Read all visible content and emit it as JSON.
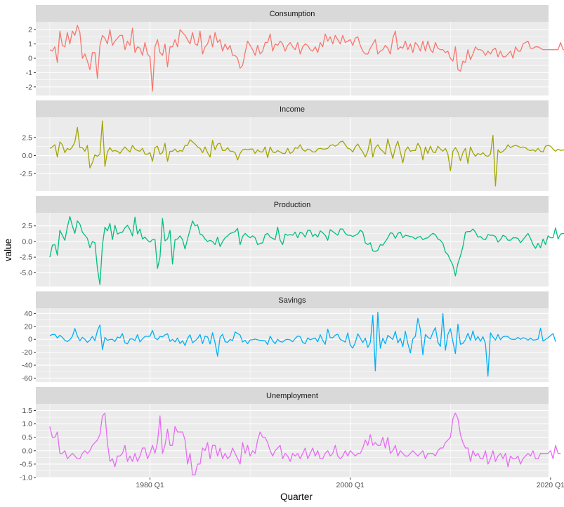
{
  "chart_data": {
    "type": "line",
    "xlabel": "Quarter",
    "ylabel": "value",
    "x_axis": {
      "range_years": [
        1968.6,
        2019.8
      ],
      "ticks": [
        {
          "year": 1980,
          "label": "1980 Q1"
        },
        {
          "year": 2000,
          "label": "2000 Q1"
        },
        {
          "year": 2020,
          "label": "2020 Q1"
        }
      ]
    },
    "x_start": {
      "year": 1970,
      "quarter": 1
    },
    "grid": true,
    "series": [
      {
        "name": "Consumption",
        "color": "#F8766D",
        "ylim": [
          -2.6,
          2.55
        ],
        "ticks": [
          -2,
          -1,
          0,
          1,
          2
        ],
        "tick_labels": [
          "-2",
          "-1",
          "0",
          "1",
          "2"
        ],
        "values": [
          0.6,
          0.5,
          0.8,
          -0.3,
          1.9,
          0.9,
          0.8,
          1.8,
          1.0,
          1.9,
          1.6,
          2.3,
          1.8,
          0.0,
          0.3,
          -0.2,
          -0.8,
          0.4,
          0.4,
          -1.4,
          0.9,
          1.6,
          1.4,
          1.0,
          2.0,
          0.9,
          1.2,
          1.4,
          1.6,
          1.6,
          0.6,
          1.2,
          0.9,
          2.1,
          0.4,
          0.8,
          0.7,
          0.2,
          1.1,
          0.3,
          0.1,
          -2.3,
          0.8,
          1.3,
          0.4,
          0.2,
          1.0,
          -0.6,
          0.8,
          0.8,
          1.3,
          0.8,
          2.0,
          1.8,
          1.6,
          1.3,
          1.0,
          1.8,
          1.0,
          0.9,
          1.9,
          0.3,
          0.8,
          1.0,
          1.6,
          0.8,
          1.8,
          1.1,
          1.3,
          0.5,
          1.0,
          0.6,
          0.9,
          0.2,
          0.2,
          0.0,
          -0.7,
          -0.5,
          0.4,
          1.2,
          0.9,
          0.6,
          0.2,
          0.9,
          0.3,
          0.5,
          1.1,
          1.1,
          1.7,
          0.5,
          1.0,
          0.9,
          1.2,
          1.0,
          0.5,
          0.9,
          1.1,
          0.8,
          0.6,
          1.1,
          0.3,
          0.8,
          1.0,
          0.9,
          0.6,
          0.5,
          0.8,
          0.4,
          1.1,
          0.8,
          1.7,
          1.2,
          1.5,
          1.0,
          1.6,
          1.3,
          1.0,
          1.6,
          1.1,
          1.2,
          1.3,
          0.9,
          1.4,
          1.5,
          0.9,
          0.5,
          0.3,
          0.3,
          0.7,
          1.0,
          1.3,
          0.3,
          0.5,
          0.6,
          0.9,
          0.7,
          0.3,
          1.4,
          1.9,
          0.6,
          0.8,
          0.7,
          1.2,
          0.6,
          1.0,
          0.4,
          1.1,
          0.9,
          0.5,
          1.2,
          0.5,
          1.2,
          0.6,
          0.4,
          1.1,
          0.7,
          0.6,
          0.6,
          0.4,
          0.5,
          0.0,
          -0.2,
          0.8,
          -0.8,
          -0.9,
          -0.2,
          -0.3,
          0.6,
          -0.1,
          0.3,
          0.8,
          0.6,
          0.6,
          0.5,
          0.2,
          0.5,
          0.3,
          0.6,
          0.7,
          0.1,
          0.5,
          0.1,
          0.1,
          0.3,
          0.5,
          0.0,
          0.8,
          0.5,
          0.5,
          1.0,
          1.1,
          1.2,
          0.7,
          0.7,
          0.8,
          0.8,
          0.7,
          0.6,
          0.6,
          0.6,
          0.6,
          0.6,
          0.6,
          0.6,
          1.1,
          0.6,
          0.6,
          0.9,
          0.8,
          0.3,
          0.5,
          0.4,
          1.1
        ]
      },
      {
        "name": "Income",
        "color": "#A3A500",
        "ylim": [
          -4.9,
          5.3
        ],
        "ticks": [
          -2.5,
          0,
          2.5
        ],
        "tick_labels": [
          "-2.5",
          "0.0",
          "2.5"
        ],
        "values": [
          1.0,
          1.2,
          1.5,
          -0.2,
          1.9,
          1.5,
          0.4,
          1.0,
          0.8,
          1.2,
          1.9,
          3.9,
          1.1,
          1.1,
          0.6,
          1.4,
          -1.7,
          -1.0,
          0.1,
          -0.1,
          0.2,
          4.8,
          -1.5,
          0.5,
          1.1,
          0.6,
          0.7,
          0.6,
          0.3,
          0.8,
          1.2,
          0.8,
          0.5,
          1.4,
          0.9,
          0.7,
          0.6,
          1.0,
          0.2,
          0.2,
          0.4,
          -0.8,
          1.1,
          1.3,
          0.2,
          0.4,
          1.7,
          -0.8,
          0.6,
          0.6,
          0.9,
          0.5,
          0.7,
          0.6,
          1.4,
          1.4,
          2.2,
          1.9,
          1.6,
          1.2,
          1.0,
          0.4,
          1.2,
          0.4,
          -0.2,
          2.1,
          0.8,
          1.6,
          1.7,
          0.7,
          0.7,
          1.1,
          0.6,
          0.6,
          0.4,
          -0.6,
          0.3,
          0.8,
          0.9,
          0.8,
          0.9,
          0.9,
          0.3,
          0.8,
          0.5,
          0.5,
          1.2,
          -0.3,
          1.2,
          0.5,
          0.4,
          0.7,
          0.5,
          0.3,
          0.3,
          1.0,
          0.3,
          0.5,
          1.1,
          1.0,
          1.5,
          0.8,
          0.6,
          0.9,
          0.8,
          0.5,
          0.5,
          0.9,
          1.0,
          0.9,
          0.9,
          1.0,
          1.4,
          1.5,
          1.3,
          1.5,
          1.9,
          2.0,
          1.5,
          1.0,
          0.9,
          0.5,
          1.2,
          1.6,
          1.0,
          0.5,
          -0.2,
          0.6,
          2.3,
          -0.2,
          1.1,
          1.5,
          0.9,
          0.6,
          0.2,
          2.3,
          0.9,
          -0.4,
          1.1,
          2.0,
          0.5,
          -1.0,
          0.7,
          1.2,
          0.6,
          0.7,
          0.7,
          1.7,
          1.1,
          -0.6,
          1.2,
          0.3,
          1.3,
          0.5,
          0.4,
          1.3,
          0.9,
          0.6,
          1.0,
          0.2,
          -2.1,
          0.6,
          1.1,
          0.5,
          -0.7,
          0.4,
          1.0,
          -1.1,
          1.2,
          0.4,
          -0.1,
          0.3,
          0.1,
          0.4,
          0.0,
          -0.1,
          0.2,
          2.8,
          -4.2,
          0.8,
          0.4,
          0.6,
          0.9,
          1.5,
          1.1,
          1.3,
          1.4,
          1.3,
          1.1,
          1.2,
          1.1,
          0.8,
          0.7,
          0.8,
          0.6,
          1.0,
          0.6,
          0.5,
          1.3,
          1.4,
          1.3,
          0.9,
          0.6,
          0.9,
          0.7,
          0.8,
          0.6
        ]
      },
      {
        "name": "Production",
        "color": "#00BF7D",
        "ylim": [
          -7.2,
          4.6
        ],
        "ticks": [
          -5,
          -2.5,
          0,
          2.5
        ],
        "tick_labels": [
          "-5.0",
          "-2.5",
          "0.0",
          "2.5"
        ],
        "values": [
          -2.5,
          -0.6,
          -0.5,
          -2.2,
          1.8,
          1.0,
          0.2,
          2.3,
          4.0,
          2.5,
          1.3,
          3.3,
          2.8,
          1.5,
          1.0,
          0.5,
          -1.0,
          0.0,
          -0.2,
          -4.3,
          -6.9,
          -0.6,
          2.3,
          1.7,
          2.9,
          0.3,
          2.6,
          1.2,
          1.4,
          1.5,
          2.2,
          2.6,
          1.9,
          0.9,
          3.9,
          1.2,
          2.0,
          0.4,
          0.7,
          0.2,
          -0.1,
          0.3,
          0.3,
          -4.3,
          -2.5,
          3.7,
          0.1,
          0.4,
          1.8,
          -3.6,
          0.3,
          0.4,
          0.9,
          0.3,
          -1.2,
          0.4,
          1.9,
          3.3,
          2.5,
          2.7,
          1.2,
          1.0,
          0.4,
          0.0,
          0.2,
          0.0,
          -0.5,
          0.7,
          -0.8,
          0.0,
          0.6,
          0.9,
          1.3,
          1.4,
          1.6,
          2.1,
          -0.5,
          0.8,
          1.3,
          0.9,
          0.6,
          0.9,
          0.6,
          -0.5,
          -0.3,
          -0.2,
          1.1,
          1.3,
          0.7,
          0.5,
          0.3,
          2.3,
          0.2,
          -0.5,
          1.2,
          1.0,
          1.1,
          1.0,
          1.5,
          0.6,
          1.5,
          1.3,
          0.7,
          1.8,
          1.8,
          0.8,
          1.2,
          0.7,
          1.7,
          1.4,
          1.0,
          0.2,
          1.9,
          1.6,
          1.3,
          1.0,
          2.0,
          2.0,
          1.3,
          1.0,
          1.0,
          0.8,
          1.0,
          1.2,
          1.8,
          1.5,
          -0.2,
          -0.5,
          -0.2,
          -1.5,
          -1.6,
          -1.4,
          -0.5,
          -0.6,
          0.0,
          0.6,
          1.4,
          1.3,
          0.5,
          1.3,
          1.5,
          0.6,
          1.0,
          0.9,
          0.8,
          0.7,
          0.4,
          0.7,
          0.8,
          0.3,
          0.5,
          0.6,
          1.0,
          1.3,
          1.1,
          0.4,
          0.2,
          -0.3,
          -1.7,
          -2.1,
          -3.0,
          -3.8,
          -5.5,
          -3.5,
          -2.3,
          -0.8,
          1.5,
          1.6,
          1.6,
          2.0,
          1.5,
          0.7,
          0.8,
          0.4,
          0.3,
          1.1,
          1.0,
          1.0,
          0.8,
          -0.1,
          0.3,
          1.0,
          0.8,
          0.2,
          0.2,
          0.6,
          0.6,
          0.5,
          -0.2,
          0.3,
          0.8,
          1.3,
          0.5,
          -0.5,
          -1.1,
          -0.3,
          -1.0,
          0.4,
          -0.5,
          0.9,
          0.6,
          0.6,
          2.2,
          0.4,
          1.2,
          1.3,
          1.2,
          0.4,
          -0.6,
          -0.6
        ]
      },
      {
        "name": "Savings",
        "color": "#00B0F6",
        "ylim": [
          -66,
          48
        ],
        "ticks": [
          -60,
          -40,
          -20,
          0,
          20,
          40
        ],
        "tick_labels": [
          "-60",
          "-40",
          "-20",
          "0",
          "20",
          "40"
        ],
        "values": [
          5.8,
          7.4,
          7.5,
          2.1,
          6.2,
          3.1,
          -1.6,
          -3.5,
          -0.6,
          4.6,
          16.7,
          5.1,
          -2.2,
          3.1,
          -0.1,
          -4.7,
          -1.3,
          4.5,
          -2.2,
          13.2,
          22.1,
          -16.0,
          3.0,
          -1.5,
          -0.2,
          0.1,
          -3.4,
          3.5,
          2.2,
          8.8,
          -5.4,
          -7.0,
          0.3,
          0.6,
          -1.9,
          7.2,
          -4.1,
          0.7,
          4.4,
          4.6,
          4.8,
          13.8,
          2.1,
          -0.5,
          4.4,
          3.7,
          6.9,
          8.7,
          -3.2,
          0.0,
          -4.0,
          2.0,
          -6.5,
          -2.2,
          -9.5,
          1.4,
          6.9,
          -5.3,
          -2.3,
          1.3,
          7.4,
          -6.6,
          4.8,
          3.8,
          -7.2,
          10.2,
          -5.4,
          -26.2,
          3.2,
          7.8,
          -3.8,
          -4.6,
          -0.1,
          -2.1,
          11.3,
          9.0,
          6.6,
          -4.0,
          -1.6,
          -6.7,
          -1.0,
          -0.6,
          0.3,
          -0.7,
          -1.6,
          -1.6,
          -2.3,
          -8.1,
          4.8,
          -2.3,
          -6.8,
          0.2,
          -3.6,
          -4.2,
          -0.8,
          -0.1,
          -0.9,
          -3.7,
          1.3,
          5.1,
          4.1,
          -4.8,
          -6.8,
          2.2,
          -0.8,
          0.8,
          2.1,
          -3.8,
          7.1,
          -1.6,
          -7.7,
          15.7,
          2.6,
          2.4,
          6.3,
          7.8,
          -0.2,
          -1.9,
          -4.4,
          9.9,
          -9.1,
          -13.6,
          -5.1,
          8.6,
          2.1,
          -5.2,
          2.0,
          -12.4,
          -5.3,
          36.9,
          -48.7,
          42.0,
          -13.8,
          1.7,
          -7.0,
          6.0,
          3.1,
          -0.3,
          12.4,
          -5.6,
          1.5,
          -11.3,
          12.5,
          -6.5,
          -21.0,
          0.6,
          4.7,
          32.5,
          15.2,
          -24.0,
          7.5,
          3.1,
          0.5,
          10.5,
          18.1,
          -4.5,
          -11.0,
          39.8,
          -17.0,
          7.6,
          16.4,
          -3.8,
          -22.0,
          23.5,
          -7.6,
          -6.4,
          -0.5,
          9.3,
          -1.7,
          13.1,
          -1.6,
          4.3,
          -3.0,
          4.1,
          -6.7,
          -57.0,
          10.0,
          3.6,
          -1.3,
          7.4,
          -0.7,
          3.8,
          4.8,
          4.1,
          0.5,
          -0.2,
          0.0,
          3.0,
          -0.2,
          2.5,
          1.4,
          -1.4,
          2.0,
          -1.2,
          -0.7,
          0.3,
          17.2,
          -2.7,
          -0.2,
          2.4,
          5.8,
          8.8,
          -3.7
        ]
      },
      {
        "name": "Unemployment",
        "color": "#E76BF3",
        "ylim": [
          -1.0,
          1.75
        ],
        "ticks": [
          -1,
          -0.5,
          0,
          0.5,
          1,
          1.5
        ],
        "tick_labels": [
          "-1.0",
          "-0.5",
          "0.0",
          "0.5",
          "1.0",
          "1.5"
        ],
        "values": [
          0.9,
          0.5,
          0.5,
          0.7,
          -0.1,
          -0.1,
          0.0,
          -0.3,
          -0.2,
          -0.1,
          -0.2,
          -0.3,
          -0.3,
          -0.1,
          0.0,
          -0.1,
          0.0,
          0.2,
          0.3,
          0.4,
          0.6,
          1.3,
          1.4,
          0.3,
          -0.4,
          -0.3,
          -0.6,
          -0.2,
          -0.2,
          -0.1,
          0.2,
          -0.4,
          -0.2,
          -0.4,
          -0.1,
          -0.4,
          -0.2,
          0.1,
          0.1,
          -0.3,
          -0.1,
          0.2,
          -0.1,
          0.3,
          1.3,
          -0.1,
          0.2,
          0.8,
          0.2,
          0.2,
          0.9,
          0.7,
          0.7,
          0.7,
          0.4,
          -0.5,
          -0.1,
          -0.9,
          -0.9,
          -0.5,
          -0.5,
          0.1,
          0.0,
          0.3,
          -0.3,
          0.2,
          0.2,
          -0.2,
          0.1,
          -0.3,
          -0.1,
          -0.3,
          -0.2,
          0.1,
          -0.1,
          -0.3,
          -0.5,
          0.3,
          -0.1,
          0.2,
          -0.2,
          0.0,
          -0.1,
          0.4,
          0.7,
          0.5,
          0.5,
          0.3,
          0.0,
          -0.2,
          0.0,
          0.1,
          0.2,
          -0.3,
          -0.1,
          -0.2,
          -0.4,
          -0.1,
          -0.2,
          -0.1,
          -0.3,
          -0.1,
          0.1,
          -0.3,
          -0.1,
          0.1,
          -0.2,
          0.0,
          -0.3,
          -0.3,
          -0.1,
          0.0,
          -0.2,
          -0.1,
          0.2,
          -0.2,
          -0.3,
          -0.2,
          0.0,
          -0.2,
          0.0,
          -0.1,
          -0.2,
          -0.1,
          -0.1,
          0.1,
          0.4,
          0.2,
          0.6,
          0.2,
          0.3,
          0.2,
          0.2,
          0.5,
          0.1,
          0.5,
          -0.1,
          0.0,
          0.2,
          -0.2,
          0.0,
          -0.1,
          -0.2,
          -0.2,
          -0.1,
          0.0,
          -0.1,
          -0.2,
          -0.1,
          0.0,
          -0.3,
          -0.1,
          -0.1,
          -0.1,
          -0.2,
          0.0,
          0.1,
          0.1,
          0.3,
          0.4,
          0.5,
          1.2,
          1.4,
          1.2,
          0.6,
          0.3,
          0.1,
          0.1,
          -0.4,
          0.0,
          -0.2,
          -0.1,
          -0.3,
          -0.3,
          0.0,
          -0.5,
          -0.3,
          0.0,
          -0.4,
          -0.2,
          -0.1,
          -0.3,
          -0.1,
          -0.6,
          -0.2,
          -0.3,
          -0.3,
          -0.2,
          -0.5,
          -0.3,
          -0.2,
          -0.1,
          -0.2,
          0.0,
          -0.3,
          -0.3,
          -0.1,
          -0.1,
          -0.1,
          -0.1,
          0.0,
          -0.3,
          0.2,
          -0.1,
          -0.1
        ]
      }
    ]
  }
}
